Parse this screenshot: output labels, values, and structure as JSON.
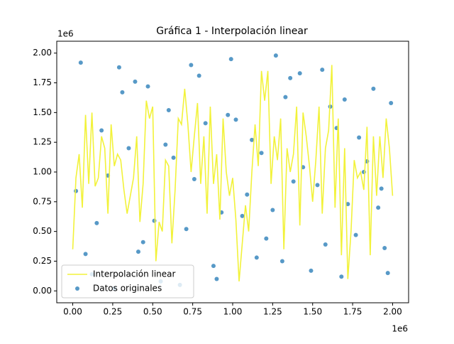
{
  "chart_data": {
    "type": "line+scatter",
    "title": "Gráfica 1 - Interpolación linear",
    "x_offset_label": "1e6",
    "y_offset_label": "1e6",
    "xlim": [
      -100000,
      2100000
    ],
    "ylim": [
      -100000,
      2100000
    ],
    "xticks": [
      {
        "value": 0,
        "label": "0.00"
      },
      {
        "value": 250000,
        "label": "0.25"
      },
      {
        "value": 500000,
        "label": "0.50"
      },
      {
        "value": 750000,
        "label": "0.75"
      },
      {
        "value": 1000000,
        "label": "1.00"
      },
      {
        "value": 1250000,
        "label": "1.25"
      },
      {
        "value": 1500000,
        "label": "1.50"
      },
      {
        "value": 1750000,
        "label": "1.75"
      },
      {
        "value": 2000000,
        "label": "2.00"
      }
    ],
    "yticks": [
      {
        "value": 0,
        "label": "0.00"
      },
      {
        "value": 250000,
        "label": "0.25"
      },
      {
        "value": 500000,
        "label": "0.50"
      },
      {
        "value": 750000,
        "label": "0.75"
      },
      {
        "value": 1000000,
        "label": "1.00"
      },
      {
        "value": 1250000,
        "label": "1.25"
      },
      {
        "value": 1500000,
        "label": "1.50"
      },
      {
        "value": 1750000,
        "label": "1.75"
      },
      {
        "value": 2000000,
        "label": "2.00"
      }
    ],
    "legend": "lower left",
    "series": [
      {
        "name": "Interpolación linear",
        "type": "line",
        "color": "#f2f23a",
        "x": [
          0,
          20000,
          40000,
          60000,
          80000,
          100000,
          120000,
          140000,
          160000,
          180000,
          200000,
          220000,
          240000,
          260000,
          280000,
          300000,
          320000,
          340000,
          360000,
          380000,
          400000,
          420000,
          440000,
          460000,
          480000,
          500000,
          520000,
          540000,
          560000,
          580000,
          600000,
          620000,
          640000,
          660000,
          680000,
          700000,
          720000,
          740000,
          760000,
          780000,
          800000,
          820000,
          840000,
          860000,
          880000,
          900000,
          920000,
          940000,
          960000,
          980000,
          1000000,
          1020000,
          1040000,
          1060000,
          1080000,
          1100000,
          1120000,
          1140000,
          1160000,
          1180000,
          1200000,
          1220000,
          1240000,
          1260000,
          1280000,
          1300000,
          1320000,
          1340000,
          1360000,
          1380000,
          1400000,
          1420000,
          1440000,
          1460000,
          1480000,
          1500000,
          1520000,
          1540000,
          1560000,
          1580000,
          1600000,
          1620000,
          1640000,
          1660000,
          1680000,
          1700000,
          1720000,
          1740000,
          1760000,
          1780000,
          1800000,
          1820000,
          1840000,
          1860000,
          1880000,
          1900000,
          1920000,
          1940000,
          1960000,
          1980000,
          2000000
        ],
        "values": [
          350000,
          950000,
          1150000,
          700000,
          1480000,
          900000,
          1500000,
          880000,
          950000,
          1300000,
          1200000,
          650000,
          1400000,
          1050000,
          1150000,
          1100000,
          850000,
          650000,
          800000,
          950000,
          1300000,
          580000,
          900000,
          1600000,
          1450000,
          1550000,
          250000,
          580000,
          500000,
          1100000,
          1050000,
          400000,
          850000,
          1450000,
          1400000,
          1700000,
          1400000,
          1000000,
          1300000,
          1580000,
          900000,
          1300000,
          650000,
          1550000,
          900000,
          1150000,
          600000,
          1450000,
          1000000,
          800000,
          950000,
          600000,
          80000,
          400000,
          720000,
          500000,
          1000000,
          1400000,
          1050000,
          1850000,
          1600000,
          1850000,
          900000,
          1300000,
          1100000,
          1450000,
          350000,
          1200000,
          1000000,
          1150000,
          1550000,
          550000,
          1500000,
          1300000,
          1050000,
          750000,
          1100000,
          1550000,
          650000,
          1200000,
          1350000,
          1900000,
          700000,
          1450000,
          300000,
          1200000,
          100000,
          500000,
          1100000,
          950000,
          1000000,
          850000,
          1380000,
          300000,
          1300000,
          800000,
          1300000,
          950000,
          1450000,
          1200000,
          800000
        ]
      },
      {
        "name": "Datos originales",
        "type": "scatter",
        "color": "#1f77b4",
        "x": [
          50000,
          120000,
          310000,
          440000,
          580000,
          670000,
          790000,
          930000,
          1020000,
          1150000,
          1270000,
          1380000,
          1490000,
          1610000,
          1720000,
          1840000,
          1950000,
          20000,
          180000,
          260000,
          390000,
          510000,
          630000,
          740000,
          880000,
          970000,
          1090000,
          1210000,
          1330000,
          1440000,
          1560000,
          1680000,
          1790000,
          1910000,
          1990000,
          80000,
          220000,
          350000,
          470000,
          550000,
          710000,
          830000,
          990000,
          1060000,
          1180000,
          1310000,
          1420000,
          1530000,
          1650000,
          1770000,
          1880000,
          1970000,
          150000,
          290000,
          410000,
          600000,
          760000,
          900000,
          1120000,
          1250000,
          1360000,
          1580000,
          1700000,
          1820000,
          1930000
        ],
        "values": [
          1920000,
          140000,
          1670000,
          410000,
          1230000,
          50000,
          1810000,
          660000,
          1440000,
          280000,
          1980000,
          920000,
          170000,
          1550000,
          730000,
          1090000,
          360000,
          840000,
          1350000,
          20000,
          1760000,
          590000,
          1120000,
          1900000,
          210000,
          1480000,
          810000,
          440000,
          1630000,
          1040000,
          1860000,
          120000,
          1290000,
          700000,
          1580000,
          310000,
          970000,
          1200000,
          1720000,
          80000,
          520000,
          1410000,
          1950000,
          630000,
          1160000,
          250000,
          1830000,
          890000,
          1370000,
          470000,
          1700000,
          150000,
          570000,
          1880000,
          330000,
          1520000,
          940000,
          100000,
          1270000,
          680000,
          1790000,
          390000,
          1610000,
          1000000,
          860000
        ]
      }
    ]
  }
}
